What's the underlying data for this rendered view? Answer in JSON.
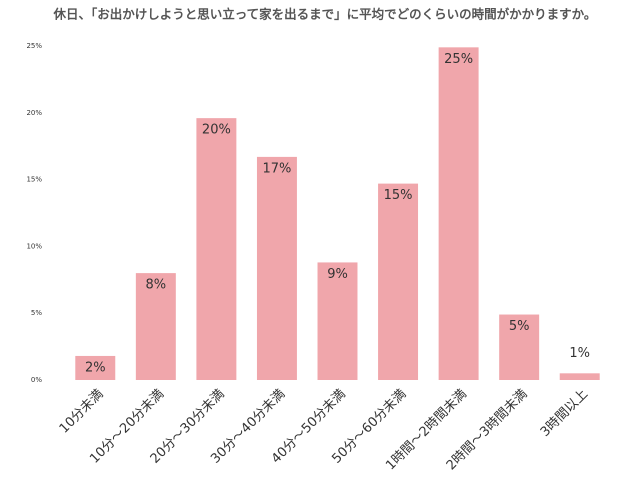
{
  "chart_data": {
    "type": "bar",
    "title": "休日、「お出かけしようと思い立って家を出るまで」に平均でどのくらいの時間がかかりますか。",
    "categories": [
      "10分未満",
      "10分～20分未満",
      "20分～30分未満",
      "30分～40分未満",
      "40分～50分未満",
      "50分～60分未満",
      "1時間～2時間未満",
      "2時間～3時間未満",
      "3時間以上"
    ],
    "values": [
      1.8,
      8.0,
      19.6,
      16.7,
      8.8,
      14.7,
      24.9,
      4.9,
      0.5
    ],
    "value_labels": [
      "2%",
      "8%",
      "20%",
      "17%",
      "9%",
      "15%",
      "25%",
      "5%",
      "1%"
    ],
    "color": "#f0a6ab",
    "ylim": [
      0,
      25
    ],
    "yticks": [
      {
        "value": 0,
        "label": "0%"
      },
      {
        "value": 5,
        "label": "5%"
      },
      {
        "value": 10,
        "label": "10%"
      },
      {
        "value": 15,
        "label": "15%"
      },
      {
        "value": 20,
        "label": "20%"
      },
      {
        "value": 25,
        "label": "25%"
      }
    ],
    "grid": false
  }
}
